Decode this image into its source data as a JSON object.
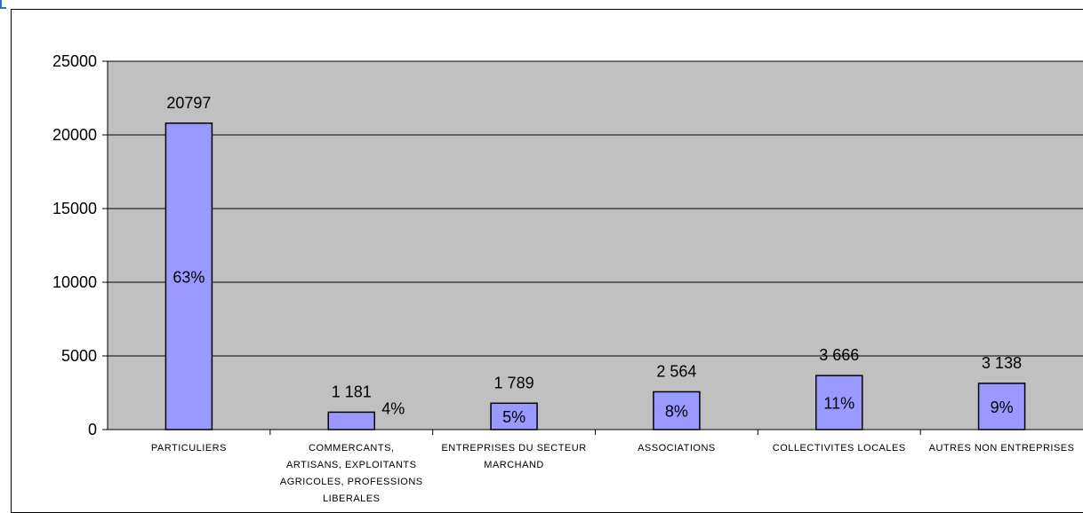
{
  "chart_data": {
    "type": "bar",
    "categories": [
      "PARTICULIERS",
      "COMMERCANTS, ARTISANS, EXPLOITANTS AGRICOLES, PROFESSIONS LIBERALES",
      "ENTREPRISES DU SECTEUR MARCHAND",
      "ASSOCIATIONS",
      "COLLECTIVITES LOCALES",
      "AUTRES NON ENTREPRISES"
    ],
    "category_lines": [
      [
        "PARTICULIERS"
      ],
      [
        "COMMERCANTS,",
        "ARTISANS, EXPLOITANTS",
        "AGRICOLES, PROFESSIONS",
        "LIBERALES"
      ],
      [
        "ENTREPRISES DU SECTEUR",
        "MARCHAND"
      ],
      [
        "ASSOCIATIONS"
      ],
      [
        "COLLECTIVITES LOCALES"
      ],
      [
        "AUTRES NON ENTREPRISES"
      ]
    ],
    "values": [
      20797,
      1181,
      1789,
      2564,
      3666,
      3138
    ],
    "value_labels": [
      "20797",
      "1 181",
      "1 789",
      "2 564",
      "3 666",
      "3 138"
    ],
    "percent_labels": [
      "63%",
      "4%",
      "5%",
      "8%",
      "11%",
      "9%"
    ],
    "ylim": [
      0,
      25000
    ],
    "yticks": [
      0,
      5000,
      10000,
      15000,
      20000,
      25000
    ],
    "ytick_labels": [
      "0",
      "5000",
      "10000",
      "15000",
      "20000",
      "25000"
    ],
    "title": "",
    "xlabel": "",
    "ylabel": "",
    "grid": true,
    "colors": {
      "bar_fill": "#9999ff",
      "bar_stroke": "#000000",
      "plot_background": "#c0c0c0",
      "gridline": "#000000"
    }
  }
}
